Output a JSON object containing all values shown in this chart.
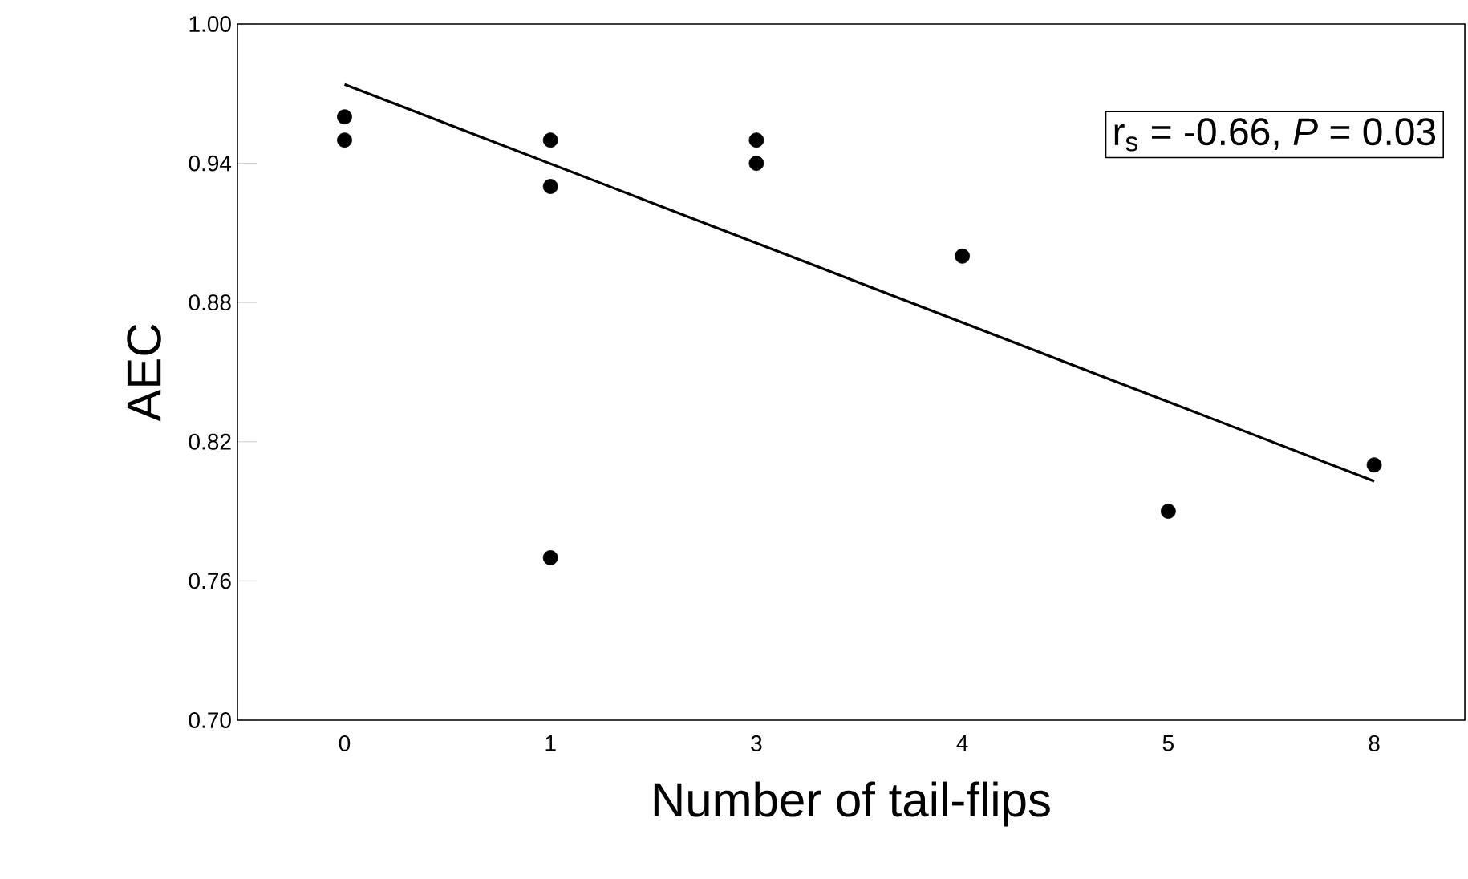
{
  "chart_data": {
    "type": "scatter",
    "xlabel": "Number of tail-flips",
    "ylabel": "AEC",
    "categories": [
      "0",
      "1",
      "3",
      "4",
      "5",
      "8"
    ],
    "series": [
      {
        "color": "#000000",
        "x": [
          "0",
          "0",
          "1",
          "1",
          "1",
          "3",
          "3",
          "4",
          "5",
          "8"
        ],
        "values": [
          0.96,
          0.95,
          0.95,
          0.93,
          0.77,
          0.95,
          0.94,
          0.9,
          0.79,
          0.81
        ],
        "marker": "circle"
      },
      {
        "type": "line",
        "color": "#000000",
        "x": [
          "0",
          "8"
        ],
        "values": [
          0.974,
          0.803
        ],
        "marker": "none",
        "line_style": "solid"
      }
    ],
    "ylim": [
      0.7,
      1.0
    ],
    "yticks": [
      {
        "value": 0.7,
        "label": "0.70"
      },
      {
        "value": 0.76,
        "label": "0.76"
      },
      {
        "value": 0.82,
        "label": "0.82"
      },
      {
        "value": 0.88,
        "label": "0.88"
      },
      {
        "value": 0.94,
        "label": "0.94"
      },
      {
        "value": 1.0,
        "label": "1.00"
      }
    ],
    "annotations": [
      "r$_{s}$ = -0.66, *P* = 0.03"
    ],
    "grid": false
  }
}
